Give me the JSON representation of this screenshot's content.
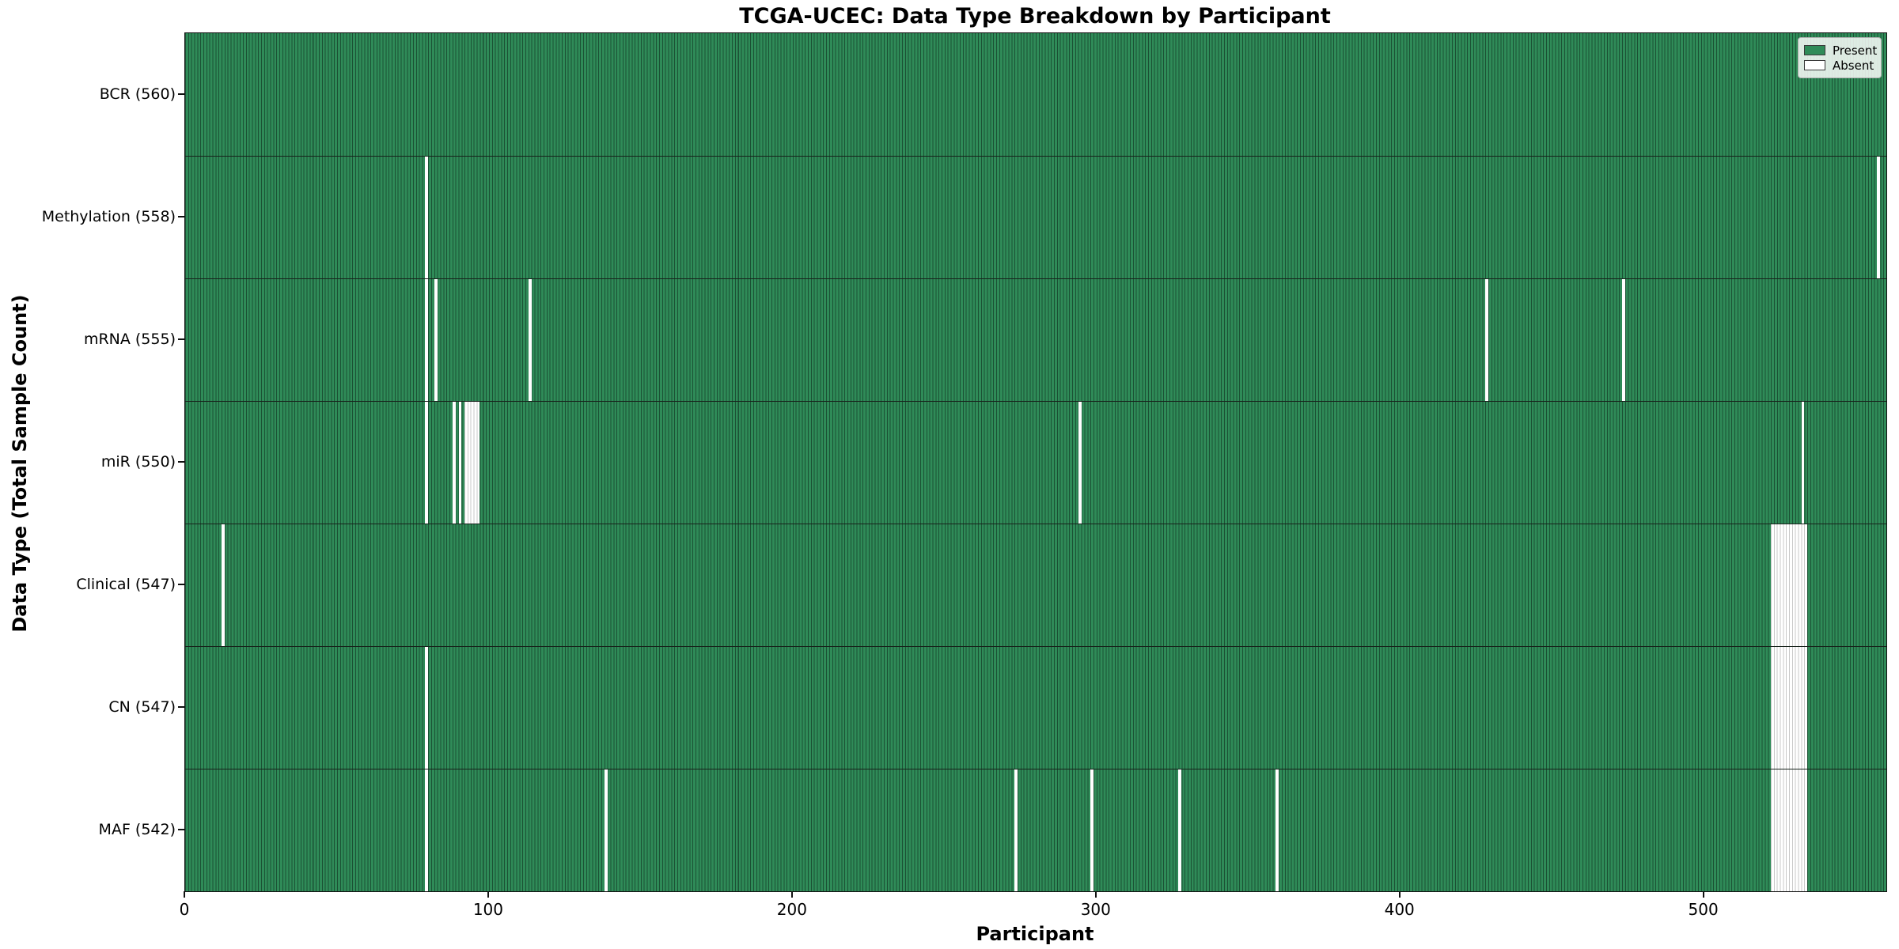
{
  "title": "TCGA-UCEC: Data Type Breakdown by Participant",
  "axes": {
    "x_label": "Participant",
    "y_label": "Data Type (Total Sample Count)",
    "x_ticks": [
      0,
      100,
      200,
      300,
      400,
      500
    ]
  },
  "legend": {
    "present_label": "Present",
    "absent_label": "Absent"
  },
  "colors": {
    "present_fill": "#2f8b58",
    "present_edge": "#1b5134",
    "absent_fill": "#ffffff",
    "absent_edge": "#c9c9c9",
    "spine": "#111111",
    "text": "#000000",
    "background": "#ffffff"
  },
  "chart_data": {
    "type": "heatmap",
    "title": "TCGA-UCEC: Data Type Breakdown by Participant",
    "xlabel": "Participant",
    "ylabel": "Data Type (Total Sample Count)",
    "x_range": [
      0,
      560
    ],
    "n_participants": 560,
    "x_tick_values": [
      0,
      100,
      200,
      300,
      400,
      500
    ],
    "legend_entries": [
      "Present",
      "Absent"
    ],
    "legend_position": "upper right",
    "cell_states": {
      "present": "green",
      "absent": "white"
    },
    "rows": [
      {
        "name": "BCR",
        "count": 560,
        "label": "BCR (560)",
        "absent_participants": []
      },
      {
        "name": "Methylation",
        "count": 558,
        "label": "Methylation (558)",
        "absent_participants": [
          79,
          557
        ]
      },
      {
        "name": "mRNA",
        "count": 555,
        "label": "mRNA (555)",
        "absent_participants": [
          79,
          82,
          113,
          428,
          473
        ]
      },
      {
        "name": "miR",
        "count": 550,
        "label": "miR (550)",
        "absent_participants": [
          79,
          88,
          90,
          92,
          93,
          94,
          95,
          96,
          294,
          532
        ]
      },
      {
        "name": "Clinical",
        "count": 547,
        "label": "Clinical (547)",
        "absent_participants": [
          12,
          522,
          523,
          524,
          525,
          526,
          527,
          528,
          529,
          530,
          531,
          532,
          533
        ]
      },
      {
        "name": "CN",
        "count": 547,
        "label": "CN (547)",
        "absent_participants": [
          79,
          522,
          523,
          524,
          525,
          526,
          527,
          528,
          529,
          530,
          531,
          532,
          533
        ]
      },
      {
        "name": "MAF",
        "count": 542,
        "label": "MAF (542)",
        "absent_participants": [
          79,
          138,
          273,
          298,
          327,
          359,
          522,
          523,
          524,
          525,
          526,
          527,
          528,
          529,
          530,
          531,
          532,
          533
        ]
      }
    ]
  }
}
